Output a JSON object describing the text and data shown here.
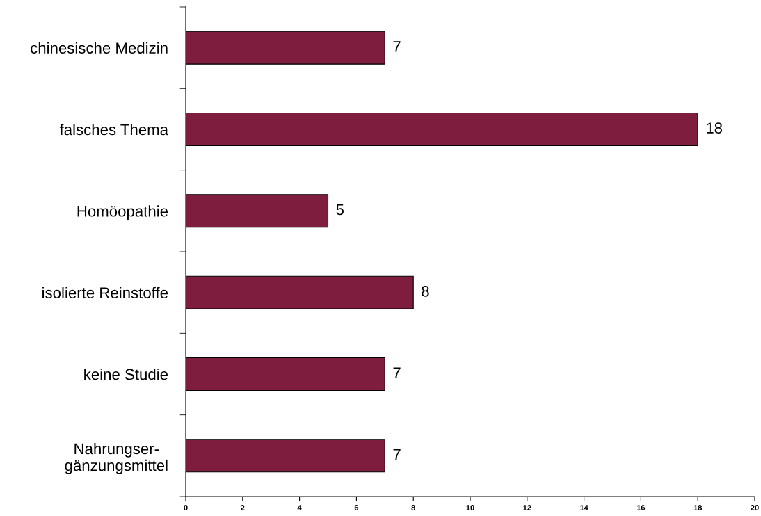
{
  "chart_data": {
    "type": "bar",
    "orientation": "horizontal",
    "categories": [
      "chinesische Medizin",
      "falsches Thema",
      "Homöopathie",
      "isolierte Reinstoffe",
      "keine Studie",
      "Nahrungser-\ngänzungsmittel"
    ],
    "values": [
      7,
      18,
      5,
      8,
      7,
      7
    ],
    "color": "#7e1d3d",
    "data_labels": true,
    "xlim": [
      0,
      20
    ],
    "xticks": [
      0,
      2,
      4,
      6,
      8,
      10,
      12,
      14,
      16,
      18,
      20
    ],
    "grid": false,
    "legend": false
  }
}
